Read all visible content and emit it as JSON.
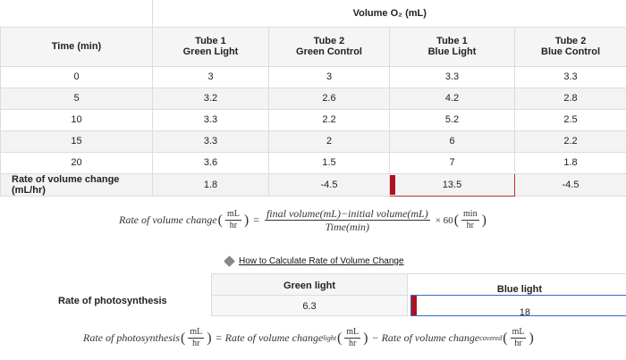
{
  "table": {
    "volume_header": "Volume O₂ (mL)",
    "time_header": "Time (min)",
    "columns": [
      "Tube 1\nGreen Light",
      "Tube 2\nGreen Control",
      "Tube 1\nBlue Light",
      "Tube 2\nBlue Control"
    ],
    "col_line1": [
      "Tube 1",
      "Tube 2",
      "Tube 1",
      "Tube 2"
    ],
    "col_line2": [
      "Green Light",
      "Green Control",
      "Blue Light",
      "Blue Control"
    ],
    "rows": [
      {
        "time": "0",
        "values": [
          "3",
          "3",
          "3.3",
          "3.3"
        ]
      },
      {
        "time": "5",
        "values": [
          "3.2",
          "2.6",
          "4.2",
          "2.8"
        ]
      },
      {
        "time": "10",
        "values": [
          "3.3",
          "2.2",
          "5.2",
          "2.5"
        ]
      },
      {
        "time": "15",
        "values": [
          "3.3",
          "2",
          "6",
          "2.2"
        ]
      },
      {
        "time": "20",
        "values": [
          "3.6",
          "1.5",
          "7",
          "1.8"
        ]
      }
    ],
    "rate_label": "Rate of volume change (mL/hr)",
    "rate_values": [
      "1.8",
      "-4.5",
      "13.5",
      "-4.5"
    ]
  },
  "formula1": {
    "lhs": "Rate of volume change",
    "unit_num": "mL",
    "unit_den": "hr",
    "eq": "=",
    "numerator": "final volume(mL)−initial volume(mL)",
    "denominator": "Time(min)",
    "times": "× 60",
    "min_num": "min",
    "min_den": "hr"
  },
  "link": {
    "text": "How to Calculate Rate of Volume Change"
  },
  "photosynthesis": {
    "label": "Rate of photosynthesis",
    "green_header": "Green light",
    "green_value": "6.3",
    "blue_header": "Blue light",
    "blue_value": "18"
  },
  "formula2": {
    "lhs": "Rate of photosynthesis",
    "unit_num": "mL",
    "unit_den": "hr",
    "eq": "= Rate of volume change",
    "sub_light": "light",
    "minus": "− Rate of volume change",
    "sub_covered": "covered"
  },
  "colors": {
    "answer_mark": "#b01020",
    "blue_border": "#2a6fc4"
  }
}
